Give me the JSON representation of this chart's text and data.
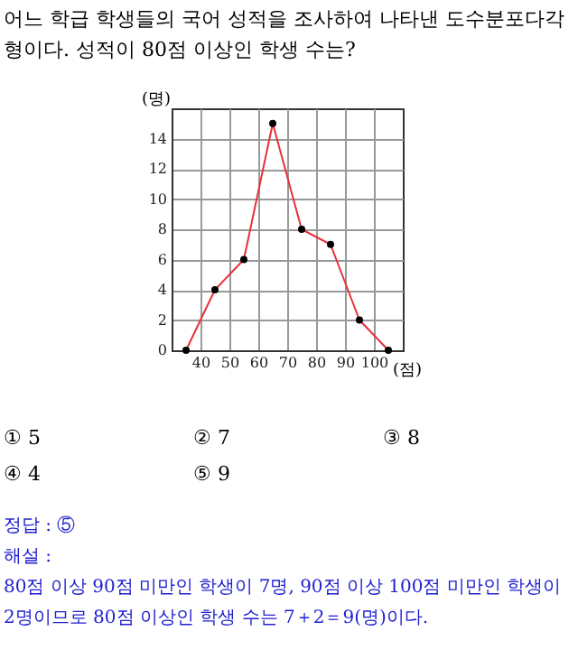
{
  "chart_data": {
    "type": "line",
    "title": "어느 학급 학생들의 국어 성적을 조사하여 나타낸 도수분포다각형이다. 성적이 80점 이상인 학생 수는?",
    "xlabel": "(점)",
    "ylabel": "(명)",
    "x": [
      35,
      45,
      55,
      65,
      75,
      85,
      95,
      105
    ],
    "series": [
      {
        "color": "#e8303a",
        "values": [
          0,
          4,
          6,
          15,
          8,
          7,
          2,
          0
        ]
      }
    ],
    "xlim": [
      30,
      110
    ],
    "xticks": [
      40,
      50,
      60,
      70,
      80,
      90,
      100
    ],
    "ylim": [
      0,
      16
    ],
    "yticks": [
      0,
      2,
      4,
      6,
      8,
      10,
      12,
      14
    ],
    "grid": true,
    "marker": "circle",
    "line_style": "solid",
    "annotations": [
      "① 5",
      "② 7",
      "③ 8",
      "④ 4",
      "⑤ 9",
      "정답 : ⑤",
      "해설 :",
      "80점 이상 90점 미만인 학생이 7명, 90점 이상 100점 미만인 학생이 2명이므로 80점 이상인 학생 수는 7＋2＝9(명)이다."
    ]
  }
}
